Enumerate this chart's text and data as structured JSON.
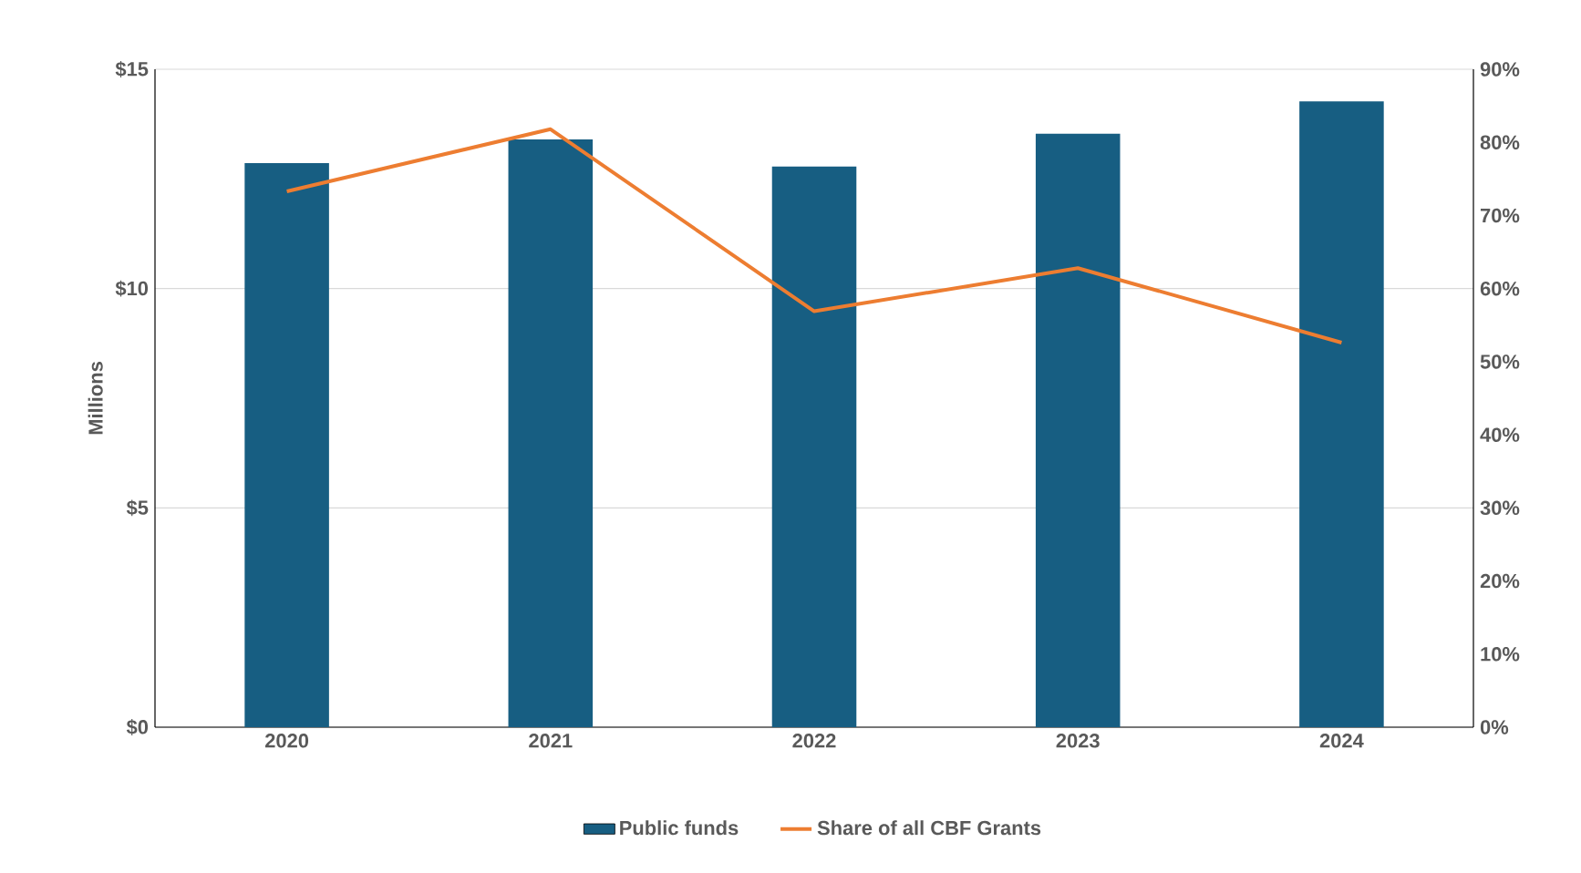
{
  "chart_data": {
    "type": "bar",
    "categories": [
      "2020",
      "2021",
      "2022",
      "2023",
      "2024"
    ],
    "series": [
      {
        "name": "Public funds",
        "color": "#175e82",
        "values": [
          12.86,
          13.4,
          12.78,
          13.53,
          14.27
        ]
      },
      {
        "name": "Share of all CBF Grants",
        "type": "line",
        "axis": "y2",
        "color": "#ed7d31",
        "values": [
          73.3,
          81.8,
          56.9,
          62.8,
          52.6
        ]
      }
    ],
    "ylabel": "Millions",
    "ylim": [
      0,
      15
    ],
    "yticks": [
      {
        "value": 0,
        "label": "$0"
      },
      {
        "value": 5,
        "label": "$5"
      },
      {
        "value": 10,
        "label": "$10"
      },
      {
        "value": 15,
        "label": "$15"
      }
    ],
    "y2lim": [
      0,
      90
    ],
    "y2ticks": [
      {
        "value": 0,
        "label": "0%"
      },
      {
        "value": 10,
        "label": "10%"
      },
      {
        "value": 20,
        "label": "20%"
      },
      {
        "value": 30,
        "label": "30%"
      },
      {
        "value": 40,
        "label": "40%"
      },
      {
        "value": 50,
        "label": "50%"
      },
      {
        "value": 60,
        "label": "60%"
      },
      {
        "value": 70,
        "label": "70%"
      },
      {
        "value": 80,
        "label": "80%"
      },
      {
        "value": 90,
        "label": "90%"
      }
    ],
    "grid": "y",
    "legend": "bottom",
    "marker": "none",
    "line_style": "solid"
  }
}
